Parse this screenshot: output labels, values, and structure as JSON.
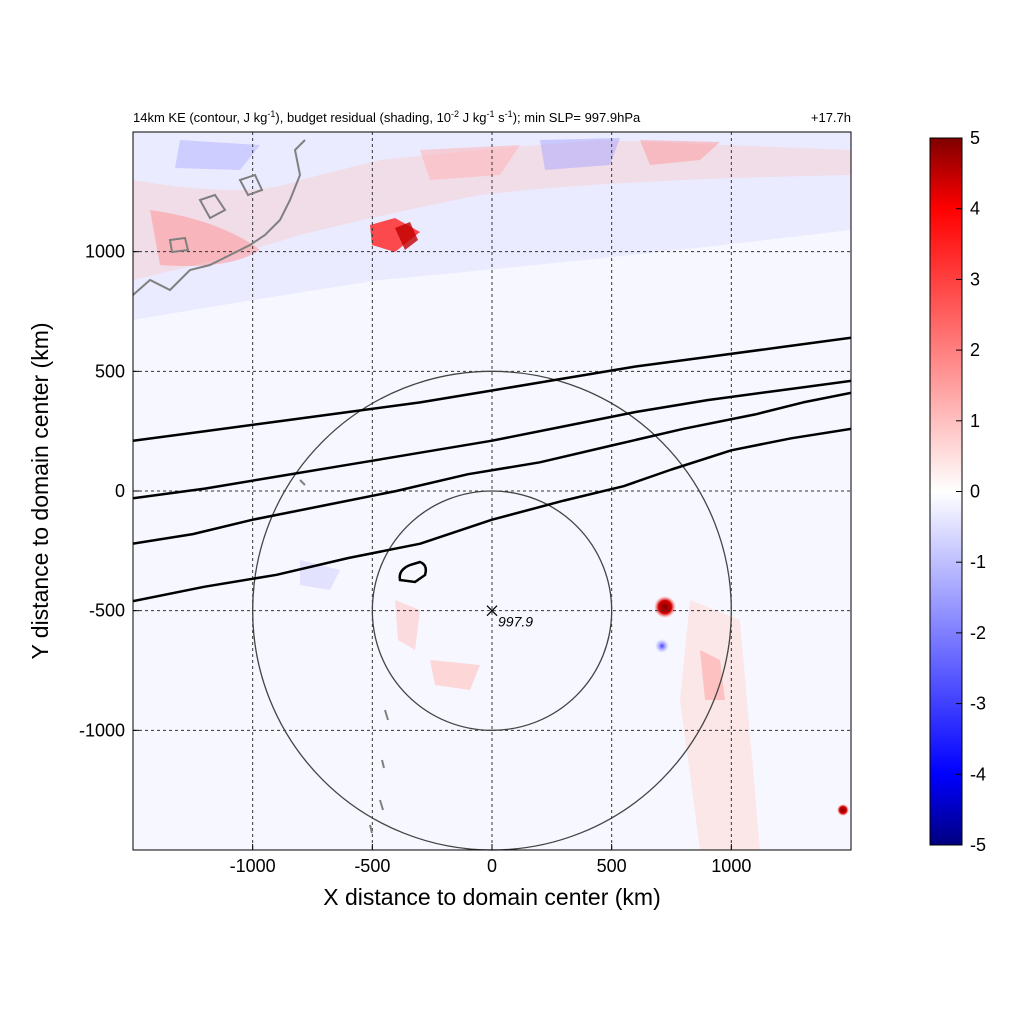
{
  "chart_data": {
    "type": "heatmap",
    "title": {
      "left_part1": "14km KE (contour, J kg",
      "left_sup1": "-1",
      "left_part2": "), budget residual (shading, 10",
      "left_sup2": "-2",
      "left_part3": " J kg",
      "left_sup3": "-1",
      "left_part4": " s",
      "left_sup4": "-1",
      "left_part5": "); min SLP= 997.9hPa",
      "right": "+17.7h"
    },
    "xlabel": "X distance to domain center (km)",
    "ylabel": "Y distance to domain center (km)",
    "xlim": [
      -1500,
      1500
    ],
    "ylim": [
      -1500,
      1500
    ],
    "xticks": [
      -1000,
      -500,
      0,
      500,
      1000
    ],
    "yticks": [
      -1000,
      -500,
      0,
      500,
      1000
    ],
    "grid": "dashed",
    "colorbar": {
      "range": [
        -5,
        5
      ],
      "ticks": [
        5,
        4,
        3,
        2,
        1,
        0,
        -1,
        -2,
        -3,
        -4,
        -5
      ],
      "colormap": "blue-white-red",
      "low_color": "#00007f",
      "mid_color": "#ffffff",
      "high_color": "#7f0000"
    },
    "storm_center": {
      "x": 0,
      "y": -500,
      "label": "997.9"
    },
    "range_rings_km": [
      500,
      1000
    ],
    "ke_contours": [
      [
        [
          -1500,
          -460
        ],
        [
          -1200,
          -400
        ],
        [
          -900,
          -350
        ],
        [
          -600,
          -280
        ],
        [
          -300,
          -220
        ],
        [
          0,
          -120
        ],
        [
          300,
          -40
        ],
        [
          550,
          20
        ],
        [
          750,
          90
        ],
        [
          1000,
          170
        ],
        [
          1250,
          220
        ],
        [
          1500,
          260
        ]
      ],
      [
        [
          -1500,
          -220
        ],
        [
          -1250,
          -180
        ],
        [
          -1000,
          -120
        ],
        [
          -700,
          -60
        ],
        [
          -400,
          0
        ],
        [
          -100,
          70
        ],
        [
          200,
          120
        ],
        [
          500,
          190
        ],
        [
          800,
          260
        ],
        [
          1100,
          320
        ],
        [
          1300,
          370
        ],
        [
          1500,
          410
        ]
      ],
      [
        [
          -1500,
          -30
        ],
        [
          -1200,
          10
        ],
        [
          -900,
          60
        ],
        [
          -600,
          110
        ],
        [
          -300,
          160
        ],
        [
          0,
          210
        ],
        [
          300,
          270
        ],
        [
          600,
          330
        ],
        [
          900,
          380
        ],
        [
          1200,
          420
        ],
        [
          1500,
          460
        ]
      ],
      [
        [
          -1500,
          210
        ],
        [
          -1200,
          250
        ],
        [
          -900,
          290
        ],
        [
          -600,
          330
        ],
        [
          -300,
          370
        ],
        [
          0,
          420
        ],
        [
          300,
          470
        ],
        [
          600,
          520
        ],
        [
          900,
          560
        ],
        [
          1200,
          600
        ],
        [
          1500,
          640
        ]
      ]
    ],
    "coastline_color": "#808080"
  }
}
